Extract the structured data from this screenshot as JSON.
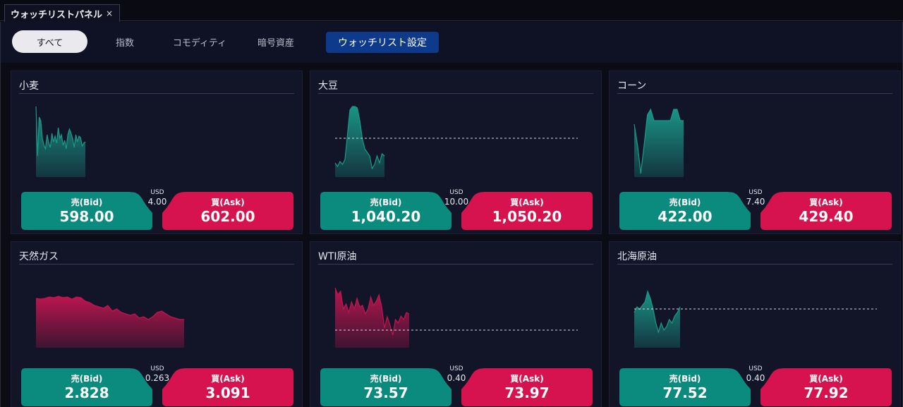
{
  "window": {
    "tab_title": "ウォッチリストパネル",
    "close_glyph": "×"
  },
  "filters": {
    "all": "すべて",
    "index": "指数",
    "commodity": "コモディティ",
    "crypto": "暗号資産",
    "settings": "ウォッチリスト設定",
    "active": "all"
  },
  "colors": {
    "bid": "#0b8a7e",
    "ask": "#d6134f",
    "up_area": "#1a9a8a",
    "down_area": "#c21650",
    "panel_bg": "#121428",
    "settings_button": "#0e3a8c"
  },
  "cards": [
    {
      "name": "小麦",
      "trend": "up",
      "bid_label": "売(Bid)",
      "ask_label": "買(Ask)",
      "bid": "598.00",
      "ask": "602.00",
      "spread_currency": "USD",
      "spread": "4.00",
      "reference_line": false,
      "trend_series": [
        100,
        30,
        85,
        80,
        55,
        45,
        40,
        60,
        48,
        42,
        62,
        50,
        58,
        48,
        70,
        55,
        60,
        45,
        52,
        40,
        60,
        68,
        62,
        55,
        42,
        60,
        50,
        58,
        56,
        44,
        48,
        50
      ]
    },
    {
      "name": "大豆",
      "trend": "up",
      "bid_label": "売(Bid)",
      "ask_label": "買(Ask)",
      "bid": "1,040.20",
      "ask": "1,050.20",
      "spread_currency": "USD",
      "spread": "10.00",
      "reference_line": true,
      "reference_level": 55,
      "trend_series": [
        20,
        15,
        22,
        18,
        25,
        60,
        95,
        100,
        100,
        98,
        80,
        55,
        40,
        35,
        30,
        12,
        18,
        30,
        20,
        33,
        30
      ]
    },
    {
      "name": "コーン",
      "trend": "up",
      "bid_label": "売(Bid)",
      "ask_label": "買(Ask)",
      "bid": "422.00",
      "ask": "429.40",
      "spread_currency": "USD",
      "spread": "7.40",
      "reference_line": false,
      "trend_series": [
        75,
        45,
        5,
        45,
        88,
        96,
        80,
        80,
        80,
        80,
        80,
        80,
        96,
        96,
        80,
        80
      ]
    },
    {
      "name": "天然ガス",
      "trend": "down",
      "bid_label": "売(Bid)",
      "ask_label": "買(Ask)",
      "bid": "2.828",
      "ask": "3.091",
      "spread_currency": "USD",
      "spread": "0.263",
      "reference_line": false,
      "trend_series": [
        70,
        69,
        70,
        72,
        71,
        73,
        71,
        72,
        69,
        72,
        71,
        66,
        64,
        60,
        58,
        56,
        60,
        52,
        55,
        50,
        48,
        46,
        48,
        42,
        44,
        40,
        44,
        50,
        52,
        48,
        44,
        42,
        40,
        40
      ]
    },
    {
      "name": "WTI原油",
      "trend": "down",
      "bid_label": "売(Bid)",
      "ask_label": "買(Ask)",
      "bid": "73.57",
      "ask": "73.97",
      "spread_currency": "USD",
      "spread": "0.40",
      "reference_line": true,
      "reference_level": 25,
      "trend_series": [
        85,
        75,
        80,
        55,
        62,
        50,
        65,
        55,
        70,
        58,
        60,
        48,
        55,
        72,
        60,
        66,
        75,
        58,
        28,
        44,
        32,
        18,
        40,
        35,
        45,
        40,
        50,
        48
      ]
    },
    {
      "name": "北海原油",
      "trend": "up",
      "bid_label": "売(Bid)",
      "ask_label": "買(Ask)",
      "bid": "77.52",
      "ask": "77.92",
      "spread_currency": "USD",
      "spread": "0.40",
      "reference_line": true,
      "reference_level": 55,
      "trend_series": [
        50,
        58,
        55,
        60,
        65,
        80,
        70,
        55,
        35,
        22,
        35,
        25,
        30,
        40,
        35,
        45,
        50,
        58
      ]
    }
  ]
}
